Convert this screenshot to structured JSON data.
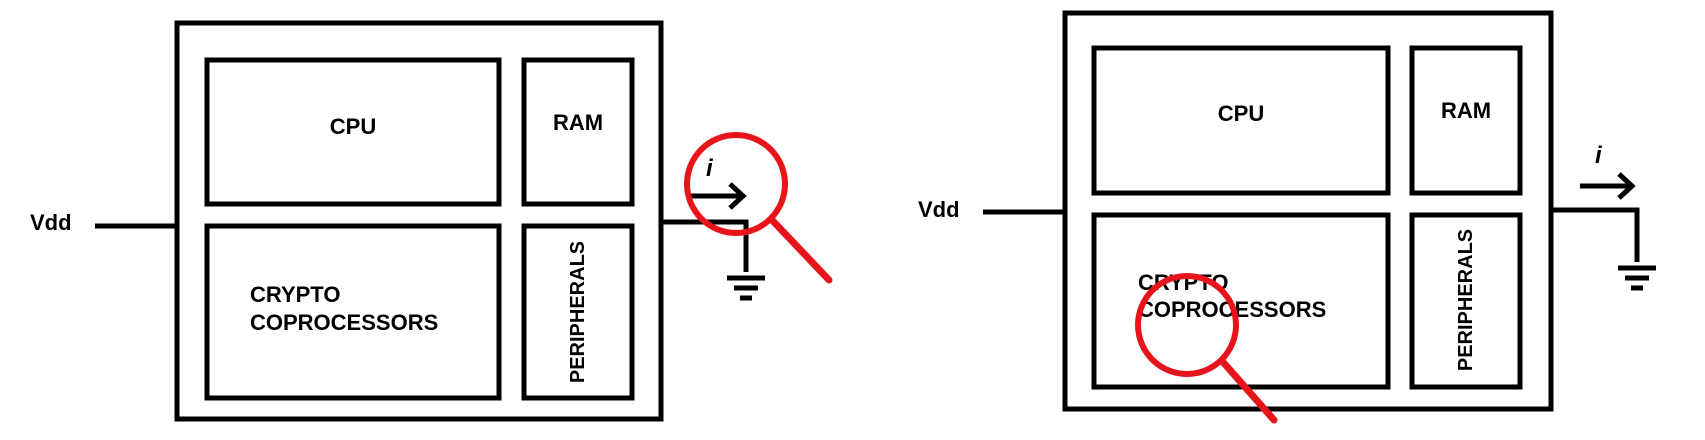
{
  "diagram_left": {
    "vdd": "Vdd",
    "cpu": "CPU",
    "ram": "RAM",
    "crypto_line1": "CRYPTO",
    "crypto_line2": "COPROCESSORS",
    "peripherals": "PERIPHERALS",
    "current": "i",
    "magnifier_target": "current-probe"
  },
  "diagram_right": {
    "vdd": "Vdd",
    "cpu": "CPU",
    "ram": "RAM",
    "crypto_line1": "CRYPTO",
    "crypto_line2": "COPROCESSORS",
    "peripherals": "PERIPHERALS",
    "current": "i",
    "magnifier_target": "crypto-coprocessors"
  },
  "colors": {
    "stroke": "#000000",
    "magnifier": "#e8141c",
    "background": "#ffffff"
  }
}
